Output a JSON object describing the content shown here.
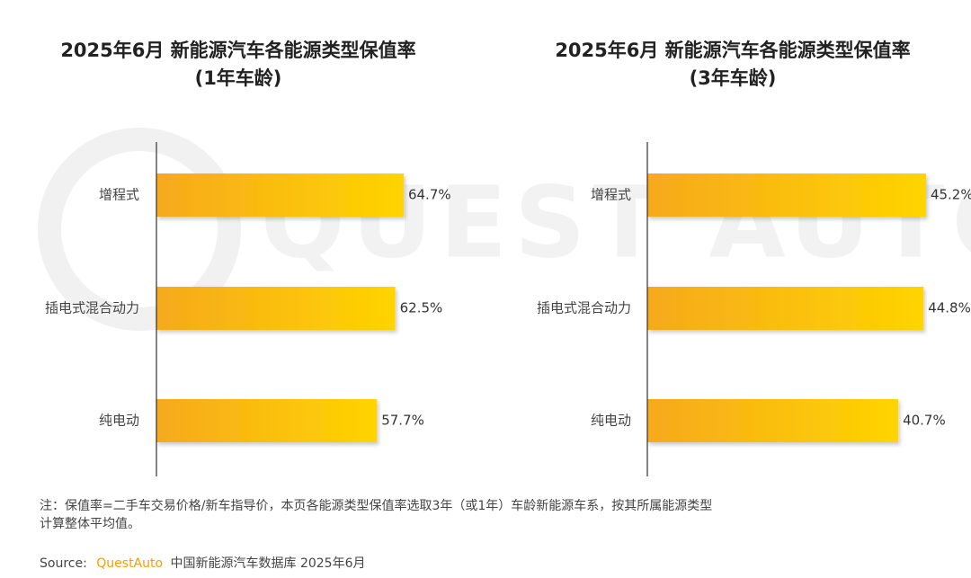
{
  "chart_data": [
    {
      "type": "bar",
      "title": "2025年6月 新能源汽车各能源类型保值率",
      "subtitle": "(1年车龄)",
      "categories": [
        "增程式",
        "插电式混合动力",
        "纯电动"
      ],
      "values": [
        64.7,
        62.5,
        57.7
      ],
      "value_labels": [
        "64.7%",
        "62.5%",
        "57.7%"
      ],
      "color": "#f6a91c",
      "xlim": [
        0,
        100
      ]
    },
    {
      "type": "bar",
      "title": "2025年6月 新能源汽车各能源类型保值率",
      "subtitle": "(3年车龄)",
      "categories": [
        "增程式",
        "插电式混合动力",
        "纯电动"
      ],
      "values": [
        45.2,
        44.8,
        40.7
      ],
      "value_labels": [
        "45.2%",
        "44.8%",
        "40.7%"
      ],
      "color": "#f6a91c",
      "xlim": [
        0,
        70
      ]
    }
  ],
  "watermark": "QUEST AUTO",
  "note": [
    "注：保值率=二手车交易价格/新车指导价，本页各能源类型保值率选取3年（或1年）车龄新能源车系，按其所属能源类型",
    "计算整体平均值。"
  ],
  "source": {
    "label": "Source:",
    "brand": "QuestAuto",
    "text": "中国新能源汽车数据库 2025年6月"
  }
}
